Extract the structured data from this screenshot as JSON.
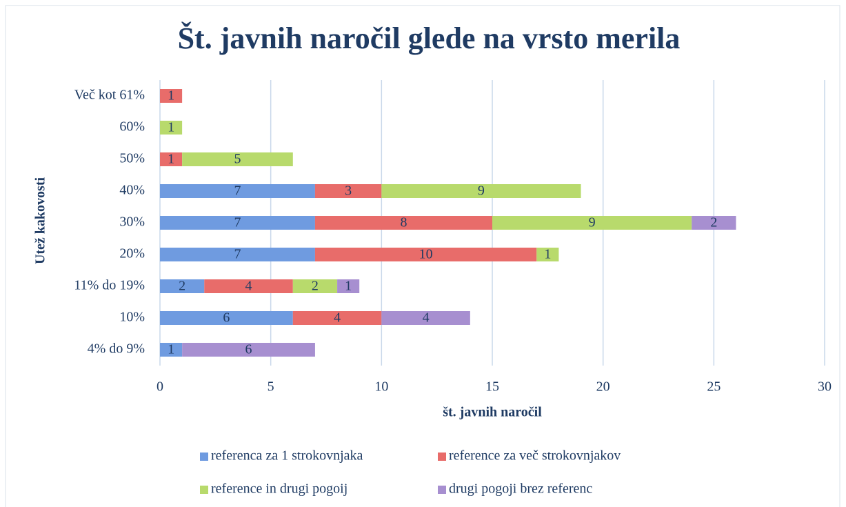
{
  "chart_data": {
    "type": "stacked_barh",
    "title": "Št. javnih naročil glede na vrsto merila",
    "xlabel": "št. javnih naročil",
    "ylabel": "Utež kakovosti",
    "categories": [
      "Več kot 61%",
      "60%",
      "50%",
      "40%",
      "30%",
      "20%",
      "11% do 19%",
      "10%",
      "4% do 9%"
    ],
    "series": [
      {
        "name": "referenca za 1 strokovnjaka",
        "color": "#6f9be0",
        "values": [
          null,
          null,
          null,
          7,
          7,
          7,
          2,
          6,
          1
        ]
      },
      {
        "name": "reference za več strokovnjakov",
        "color": "#e86c6a",
        "values": [
          1,
          null,
          1,
          3,
          8,
          10,
          4,
          4,
          null
        ]
      },
      {
        "name": "reference in drugi pogoij",
        "color": "#b8da6c",
        "values": [
          null,
          1,
          5,
          9,
          9,
          1,
          2,
          null,
          null
        ]
      },
      {
        "name": "drugi pogoji brez referenc",
        "color": "#a78fd0",
        "values": [
          null,
          null,
          null,
          null,
          2,
          null,
          1,
          4,
          6
        ]
      }
    ],
    "xlim": [
      0,
      30
    ],
    "xticks": [
      0,
      5,
      10,
      15,
      20,
      25,
      30
    ],
    "grid": true,
    "legend": "bottom"
  }
}
